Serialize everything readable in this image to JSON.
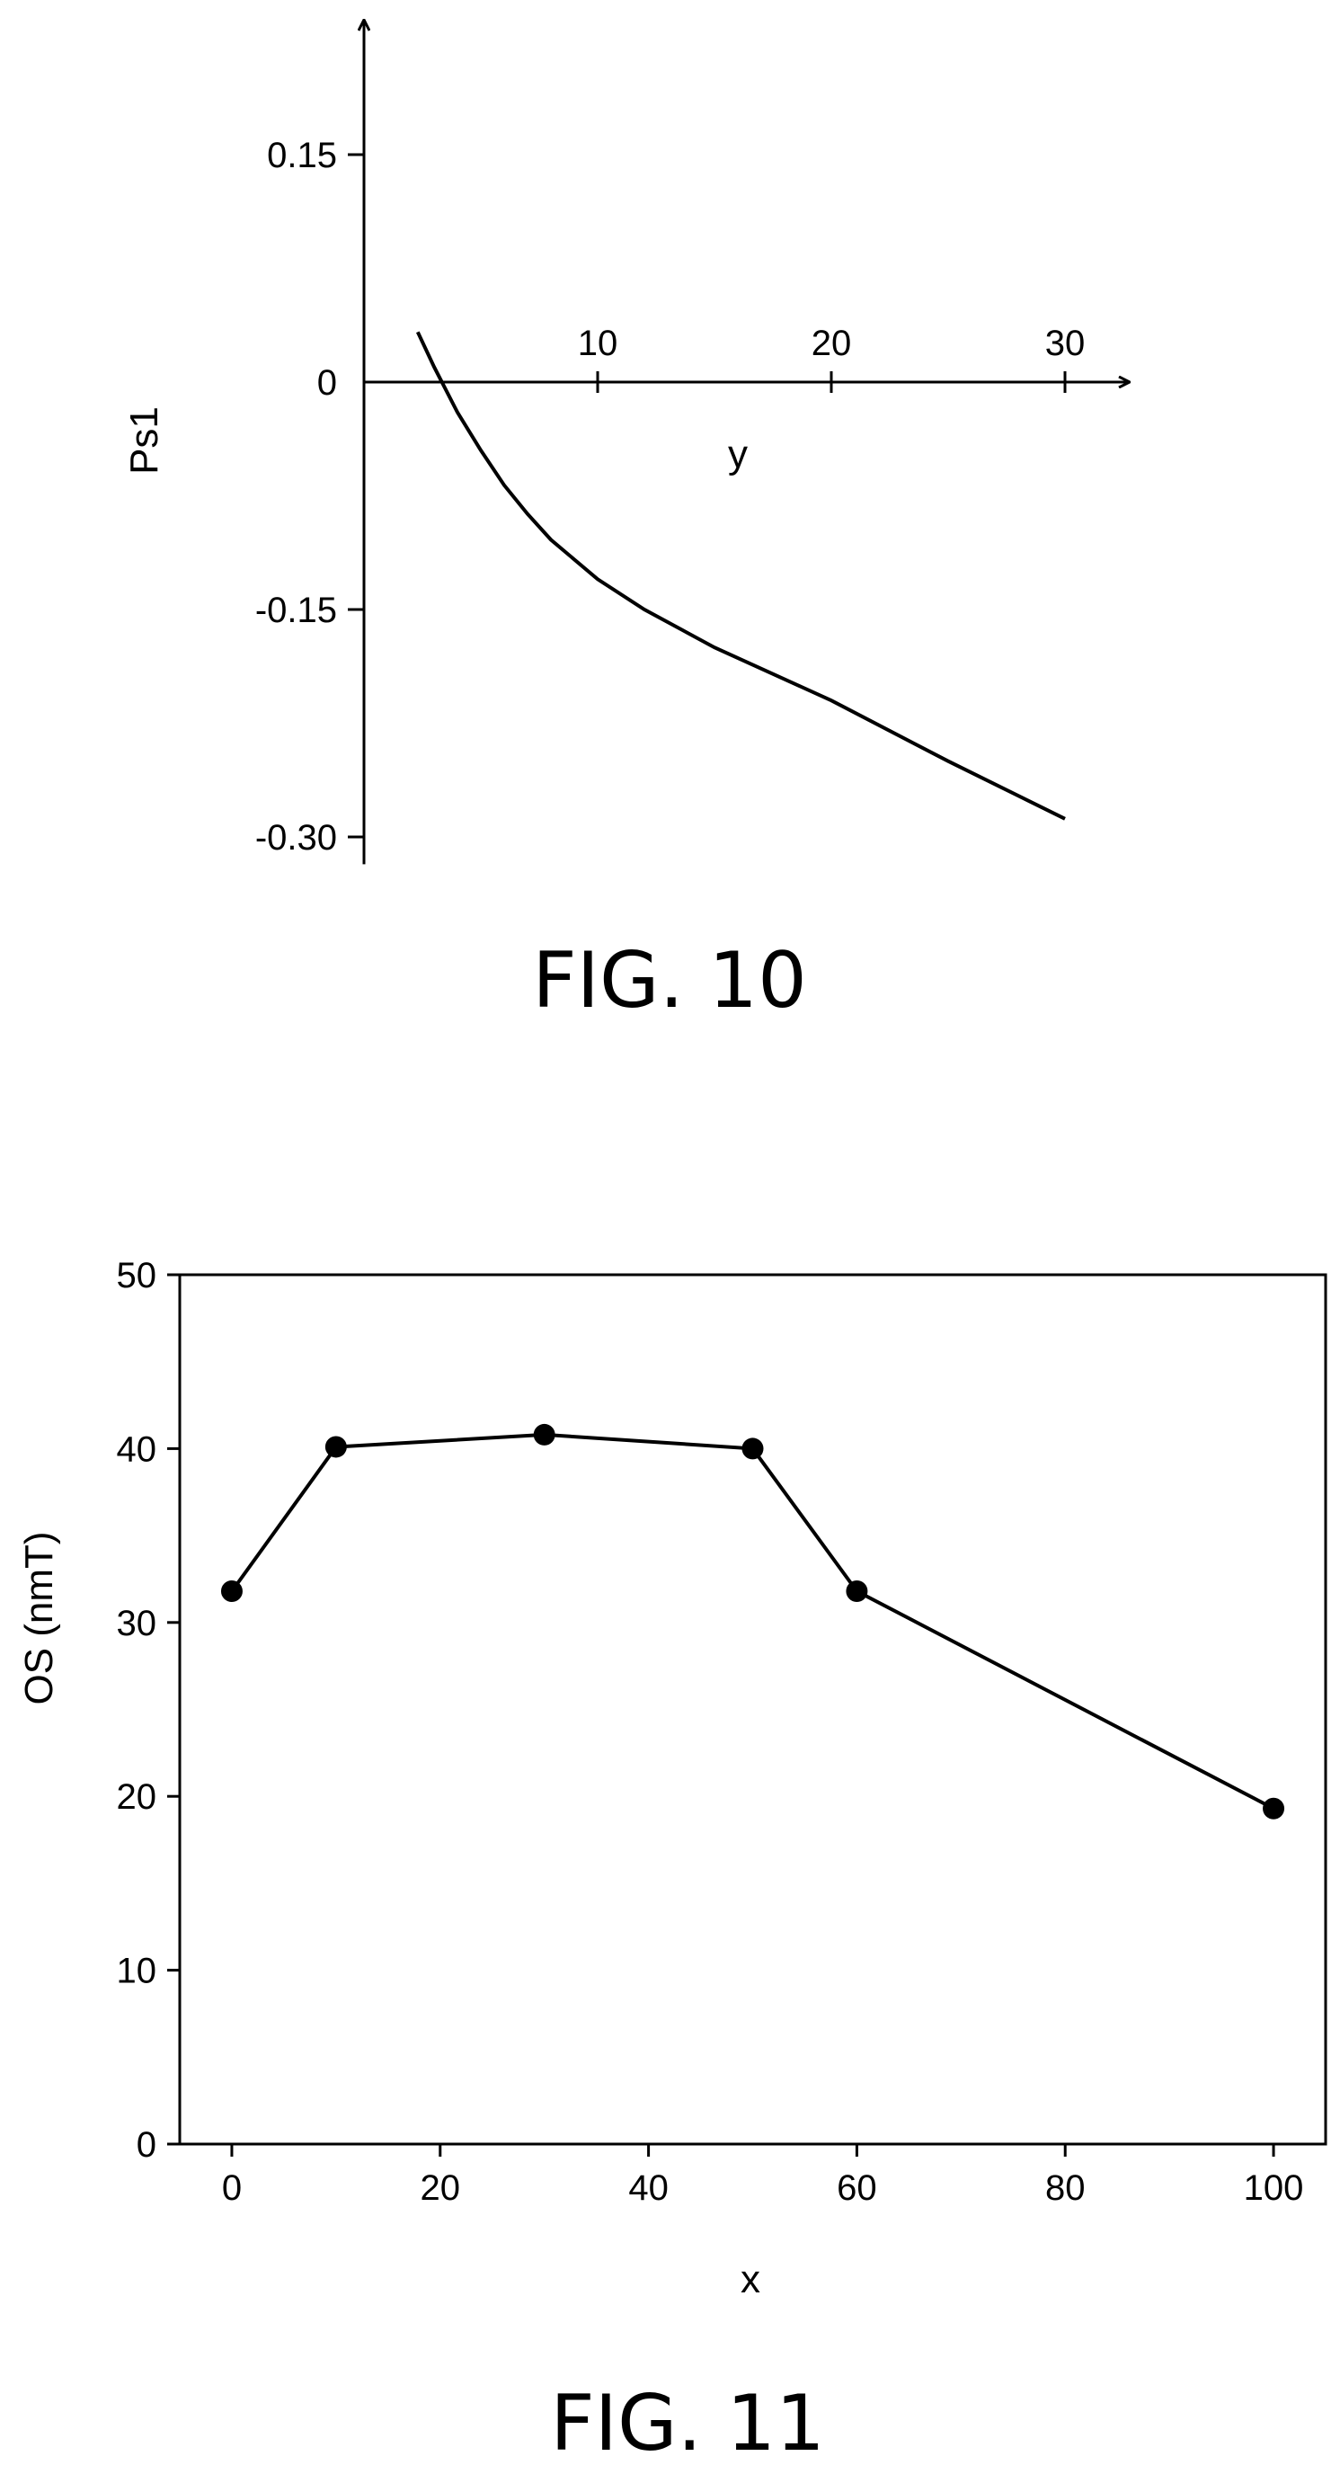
{
  "chart_data": [
    {
      "type": "line",
      "caption": "FIG. 10",
      "xlabel": "y",
      "ylabel": "Ps1",
      "xlim": [
        0,
        32
      ],
      "ylim": [
        -0.3,
        0.18
      ],
      "x_ticks": [
        10,
        20,
        30
      ],
      "x_tick_labels": [
        "10",
        "20",
        "30"
      ],
      "y_ticks": [
        0.15,
        0,
        -0.15,
        -0.3
      ],
      "y_tick_labels": [
        "0.15",
        "0",
        "-0.15",
        "-0.30"
      ],
      "grid": false,
      "series": [
        {
          "x": [
            2.3,
            3.0,
            4.0,
            5.0,
            6.0,
            7.0,
            8.0,
            10.0,
            12.0,
            15.0,
            20.0,
            25.0,
            30.0
          ],
          "y": [
            0.033,
            0.01,
            -0.02,
            -0.045,
            -0.068,
            -0.087,
            -0.104,
            -0.13,
            -0.15,
            -0.175,
            -0.21,
            -0.25,
            -0.288
          ]
        }
      ]
    },
    {
      "type": "line",
      "caption": "FIG. 11",
      "xlabel": "x",
      "ylabel": "OS (nmT)",
      "xlim": [
        -5,
        105
      ],
      "ylim": [
        0,
        50
      ],
      "x_ticks": [
        0,
        20,
        40,
        60,
        80,
        100
      ],
      "x_tick_labels": [
        "0",
        "20",
        "40",
        "60",
        "80",
        "100"
      ],
      "y_ticks": [
        0,
        10,
        20,
        30,
        40,
        50
      ],
      "y_tick_labels": [
        "0",
        "10",
        "20",
        "30",
        "40",
        "50"
      ],
      "grid": false,
      "markers": "filled-circle",
      "series": [
        {
          "x": [
            0,
            10,
            30,
            50,
            60,
            100
          ],
          "y": [
            31.8,
            40.1,
            40.8,
            40.0,
            31.8,
            19.3
          ]
        }
      ]
    }
  ]
}
